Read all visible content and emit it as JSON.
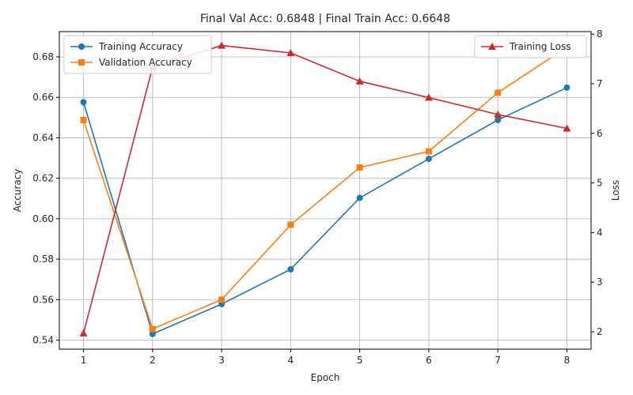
{
  "chart_data": {
    "type": "line",
    "title": "Final Val Acc: 0.6848 | Final Train Acc: 0.6648",
    "xlabel": "Epoch",
    "ylabel_left": "Accuracy",
    "ylabel_right": "Loss",
    "x": [
      1,
      2,
      3,
      4,
      5,
      6,
      7,
      8
    ],
    "x_ticks": [
      "1",
      "2",
      "3",
      "4",
      "5",
      "6",
      "7",
      "8"
    ],
    "ylim_left": [
      0.5355,
      0.6925
    ],
    "y_ticks_left": [
      "0.54",
      "0.56",
      "0.58",
      "0.60",
      "0.62",
      "0.64",
      "0.66",
      "0.68"
    ],
    "ylim_right": [
      1.65,
      8.05
    ],
    "y_ticks_right": [
      "2",
      "3",
      "4",
      "5",
      "6",
      "7",
      "8"
    ],
    "grid": true,
    "legend_left_placement": "upper-left",
    "legend_right_placement": "upper-right",
    "series": [
      {
        "name": "Training Accuracy",
        "axis": "left",
        "color": "#1f77b4",
        "marker": "circle",
        "values": [
          0.6576,
          0.543,
          0.5578,
          0.575,
          0.6103,
          0.6296,
          0.6488,
          0.6648
        ]
      },
      {
        "name": "Validation Accuracy",
        "axis": "left",
        "color": "#ff7f0e",
        "marker": "square",
        "values": [
          0.6488,
          0.5455,
          0.56,
          0.597,
          0.6253,
          0.6333,
          0.6623,
          0.6848
        ]
      },
      {
        "name": "Training Loss",
        "axis": "right",
        "color": "#d62728",
        "marker": "triangle",
        "values": [
          1.97,
          7.33,
          7.77,
          7.62,
          7.05,
          6.72,
          6.38,
          6.1
        ]
      }
    ]
  }
}
